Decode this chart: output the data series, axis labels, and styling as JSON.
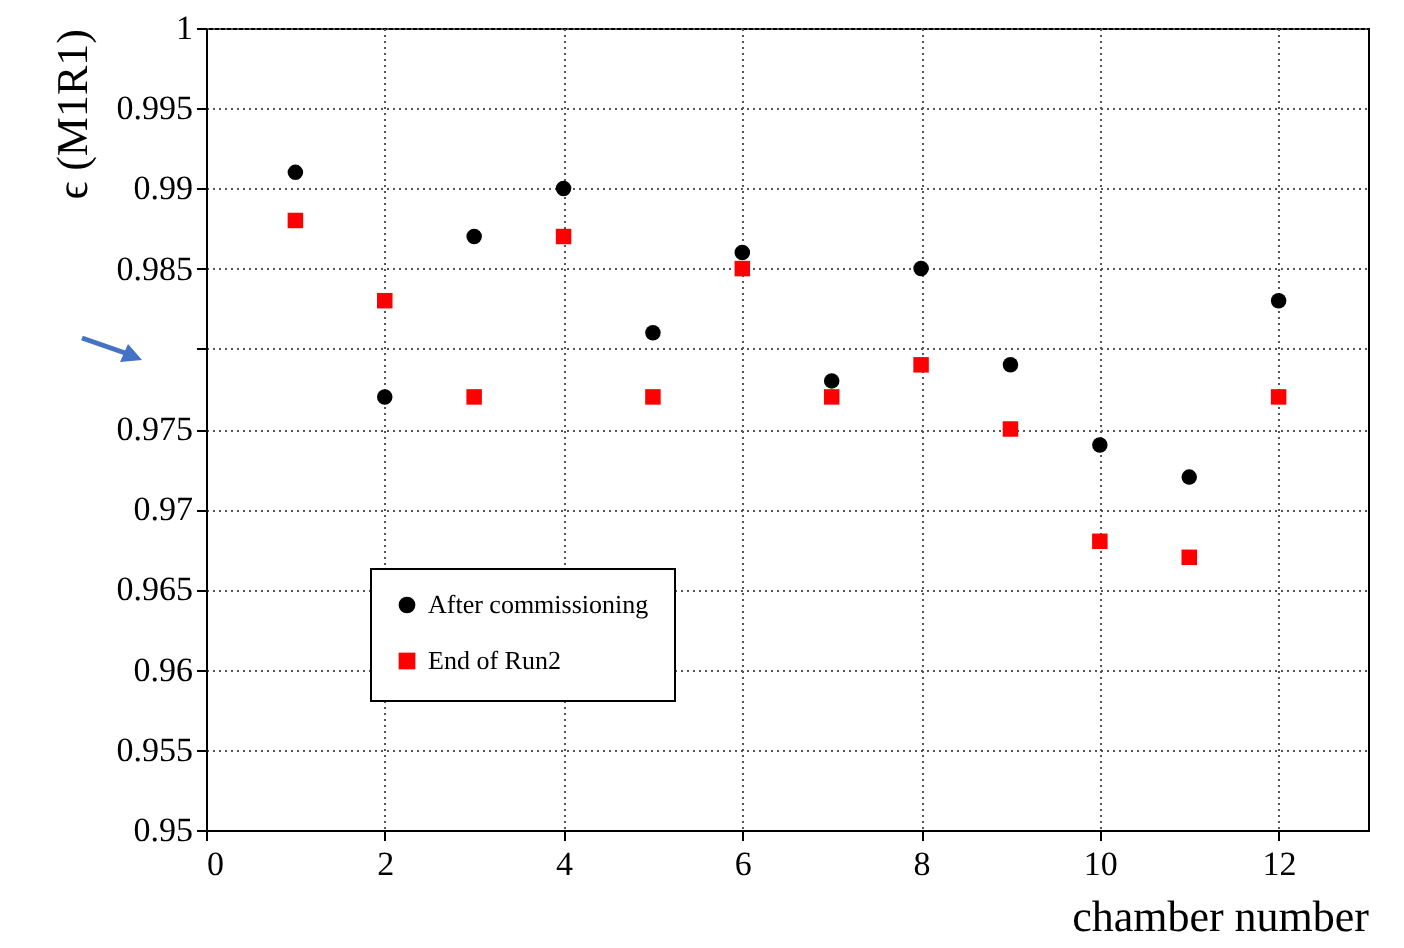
{
  "chart_data": {
    "type": "scatter",
    "xlabel": "chamber number",
    "ylabel": "ϵ (M1R1)",
    "x": [
      1,
      2,
      3,
      4,
      5,
      6,
      7,
      8,
      9,
      10,
      11,
      12
    ],
    "series": [
      {
        "name": "After commissioning",
        "color": "#000000",
        "marker": "circle",
        "values": [
          0.991,
          0.977,
          0.987,
          0.99,
          0.981,
          0.986,
          0.978,
          0.985,
          0.979,
          0.974,
          0.972,
          0.983
        ]
      },
      {
        "name": "End of Run2",
        "color": "#ff0000",
        "marker": "square",
        "values": [
          0.988,
          0.983,
          0.977,
          0.987,
          0.977,
          0.985,
          0.977,
          0.979,
          0.975,
          0.968,
          0.967,
          0.977
        ]
      }
    ],
    "xlim": [
      0,
      13
    ],
    "xticks": [
      0,
      2,
      4,
      6,
      8,
      10,
      12
    ],
    "ylim": [
      0.95,
      1
    ],
    "yticks": [
      0.95,
      0.955,
      0.96,
      0.965,
      0.97,
      0.975,
      {
        "value": 0.98,
        "label": null
      },
      0.985,
      0.99,
      0.995,
      1
    ],
    "grid": true,
    "legend": "bottom left"
  }
}
